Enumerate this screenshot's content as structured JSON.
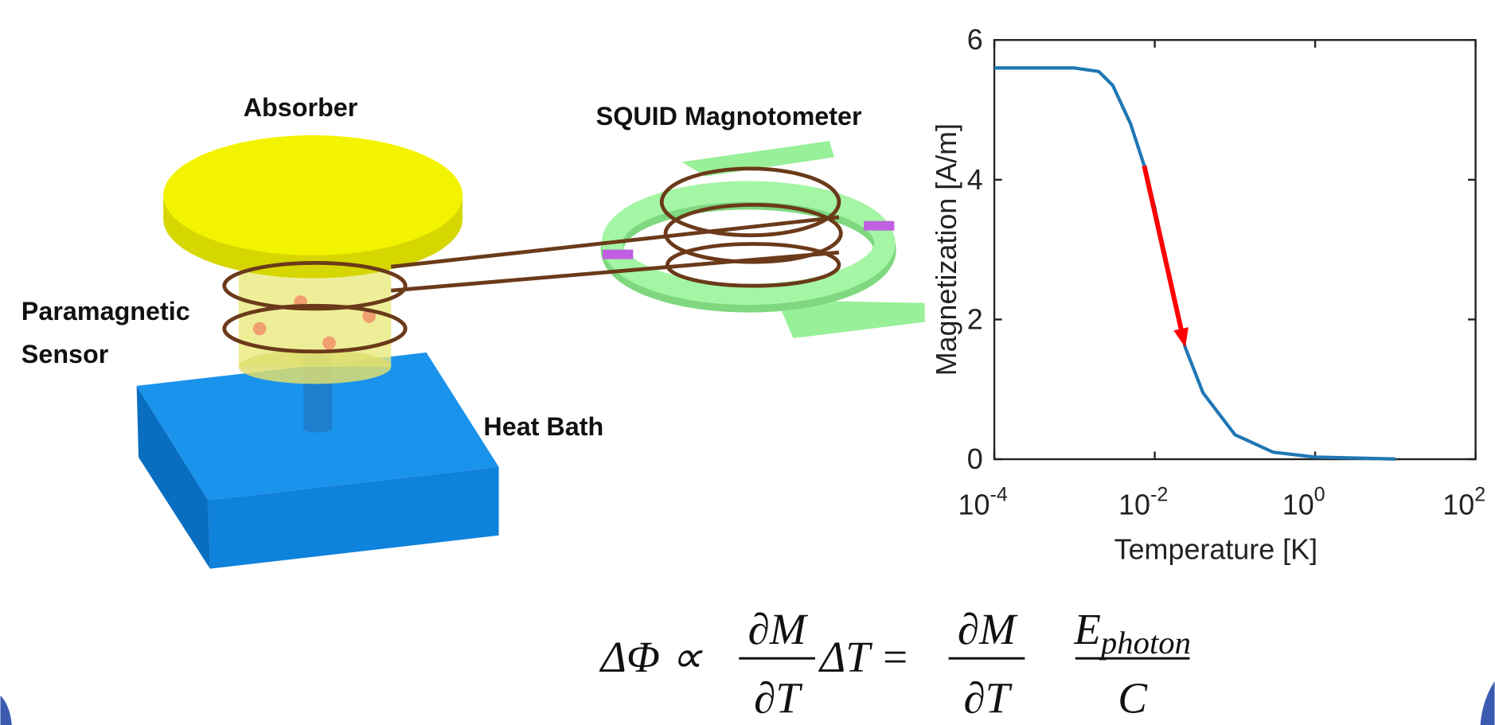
{
  "labels": {
    "absorber": "Absorber",
    "squid": "SQUID Magnotometer",
    "sensor_line1": "Paramagnetic",
    "sensor_line2": "Sensor",
    "heat_bath": "Heat Bath"
  },
  "equation": {
    "lhs": "ΔΦ ∝",
    "frac1_num": "∂M",
    "frac1_den": "∂T",
    "mid": "ΔT =",
    "frac2_num": "∂M",
    "frac2_den": "∂T",
    "frac3_num": "E",
    "frac3_sub": "photon",
    "frac3_den": "C"
  },
  "chart_data": {
    "type": "line",
    "xscale": "log",
    "x_label": "Temperature [K]",
    "y_label": "Magnetization [A/m]",
    "x": [
      0.0001,
      0.001,
      0.002,
      0.003,
      0.005,
      0.0074,
      0.01,
      0.015,
      0.024,
      0.04,
      0.1,
      0.3,
      1,
      10
    ],
    "series": [
      {
        "color": "#1f77b4",
        "values": [
          5.6,
          5.6,
          5.55,
          5.35,
          4.8,
          4.2,
          3.6,
          2.6,
          1.6,
          0.95,
          0.35,
          0.1,
          0.03,
          0.003
        ]
      }
    ],
    "xlim": [
      0.0001,
      100
    ],
    "ylim": [
      0,
      6
    ],
    "xticks": [
      {
        "value": 0.0001,
        "label": "10",
        "exponent": "-4"
      },
      {
        "value": 0.01,
        "label": "10",
        "exponent": "-2"
      },
      {
        "value": 1,
        "label": "10",
        "exponent": "0"
      },
      {
        "value": 100,
        "label": "10",
        "exponent": "2"
      }
    ],
    "yticks": [
      0,
      2,
      4,
      6
    ],
    "arrow": {
      "from": [
        0.0074,
        4.2
      ],
      "to": [
        0.024,
        1.6
      ],
      "color": "#ff0000"
    }
  }
}
